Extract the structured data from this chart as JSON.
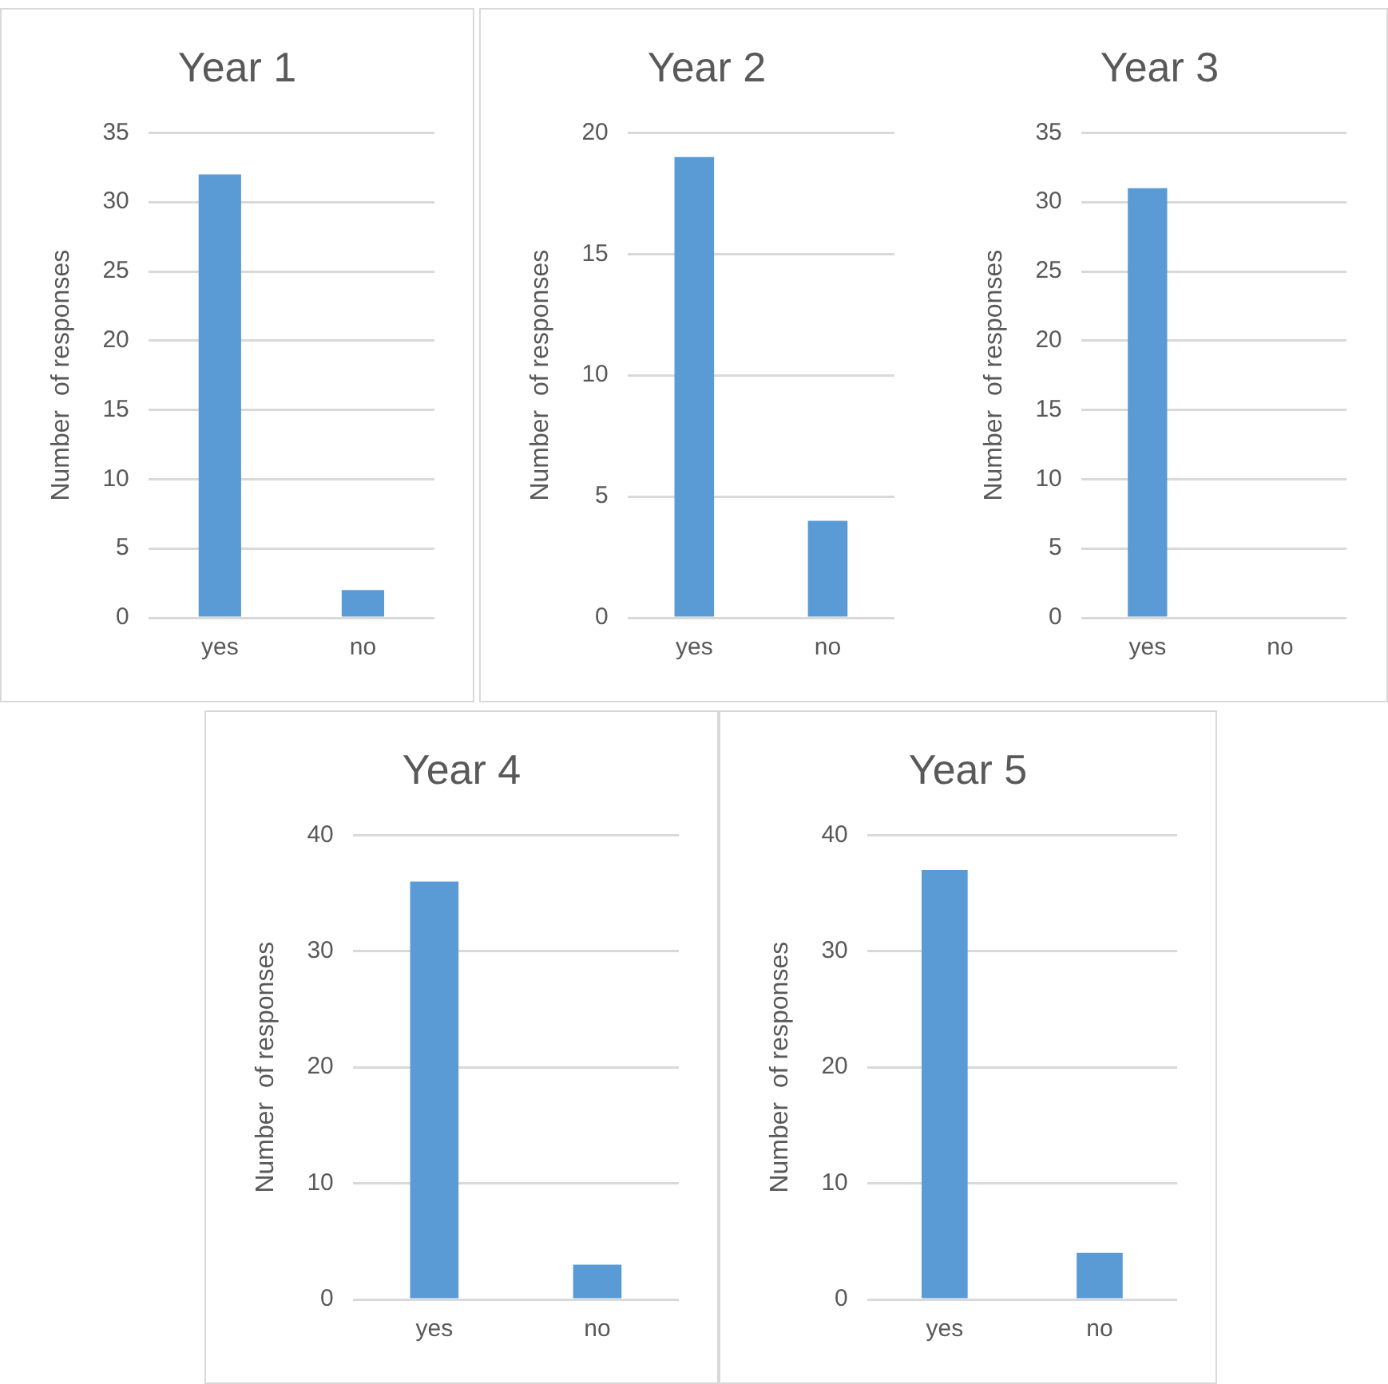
{
  "chart_data": [
    {
      "type": "bar",
      "title": "Year 1",
      "ylabel": "Number  of responses",
      "categories": [
        "yes",
        "no"
      ],
      "values": [
        32,
        2
      ],
      "color": "#5b9bd5",
      "ylim": [
        0,
        35
      ],
      "yticks": [
        0,
        5,
        10,
        15,
        20,
        25,
        30,
        35
      ],
      "grid": "y",
      "legend": false
    },
    {
      "type": "bar",
      "title": "Year 2",
      "ylabel": "Number  of responses",
      "categories": [
        "yes",
        "no"
      ],
      "values": [
        19,
        4
      ],
      "color": "#5b9bd5",
      "ylim": [
        0,
        20
      ],
      "yticks": [
        0,
        5,
        10,
        15,
        20
      ],
      "grid": "y",
      "legend": false
    },
    {
      "type": "bar",
      "title": "Year 3",
      "ylabel": "Number  of responses",
      "categories": [
        "yes",
        "no"
      ],
      "values": [
        31,
        0
      ],
      "color": "#5b9bd5",
      "ylim": [
        0,
        35
      ],
      "yticks": [
        0,
        5,
        10,
        15,
        20,
        25,
        30,
        35
      ],
      "grid": "y",
      "legend": false
    },
    {
      "type": "bar",
      "title": "Year 4",
      "ylabel": "Number  of responses",
      "categories": [
        "yes",
        "no"
      ],
      "values": [
        36,
        3
      ],
      "color": "#5b9bd5",
      "ylim": [
        0,
        40
      ],
      "yticks": [
        0,
        10,
        20,
        30,
        40
      ],
      "grid": "y",
      "legend": false
    },
    {
      "type": "bar",
      "title": "Year 5",
      "ylabel": "Number  of responses",
      "categories": [
        "yes",
        "no"
      ],
      "values": [
        37,
        4
      ],
      "color": "#5b9bd5",
      "ylim": [
        0,
        40
      ],
      "yticks": [
        0,
        10,
        20,
        30,
        40
      ],
      "grid": "y",
      "legend": false
    }
  ]
}
